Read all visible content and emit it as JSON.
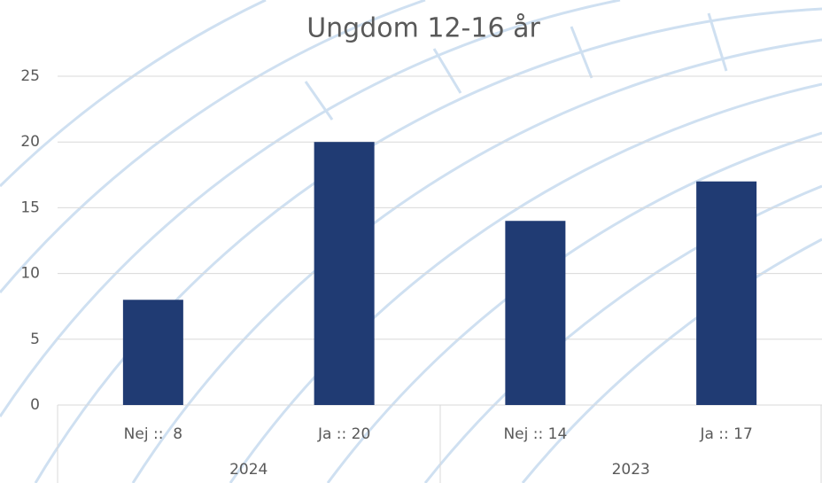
{
  "chart_data": {
    "type": "bar",
    "title": "Ungdom 12-16 år",
    "categories": [
      "Nej ::  8",
      "Ja :: 20",
      "Nej :: 14",
      "Ja :: 17"
    ],
    "groups": [
      "2024",
      "2023"
    ],
    "values": [
      8,
      20,
      14,
      17
    ],
    "color": "#203b73",
    "ylim": [
      0,
      25
    ],
    "yticks": [
      0,
      5,
      10,
      15,
      20,
      25
    ],
    "grid": true
  }
}
